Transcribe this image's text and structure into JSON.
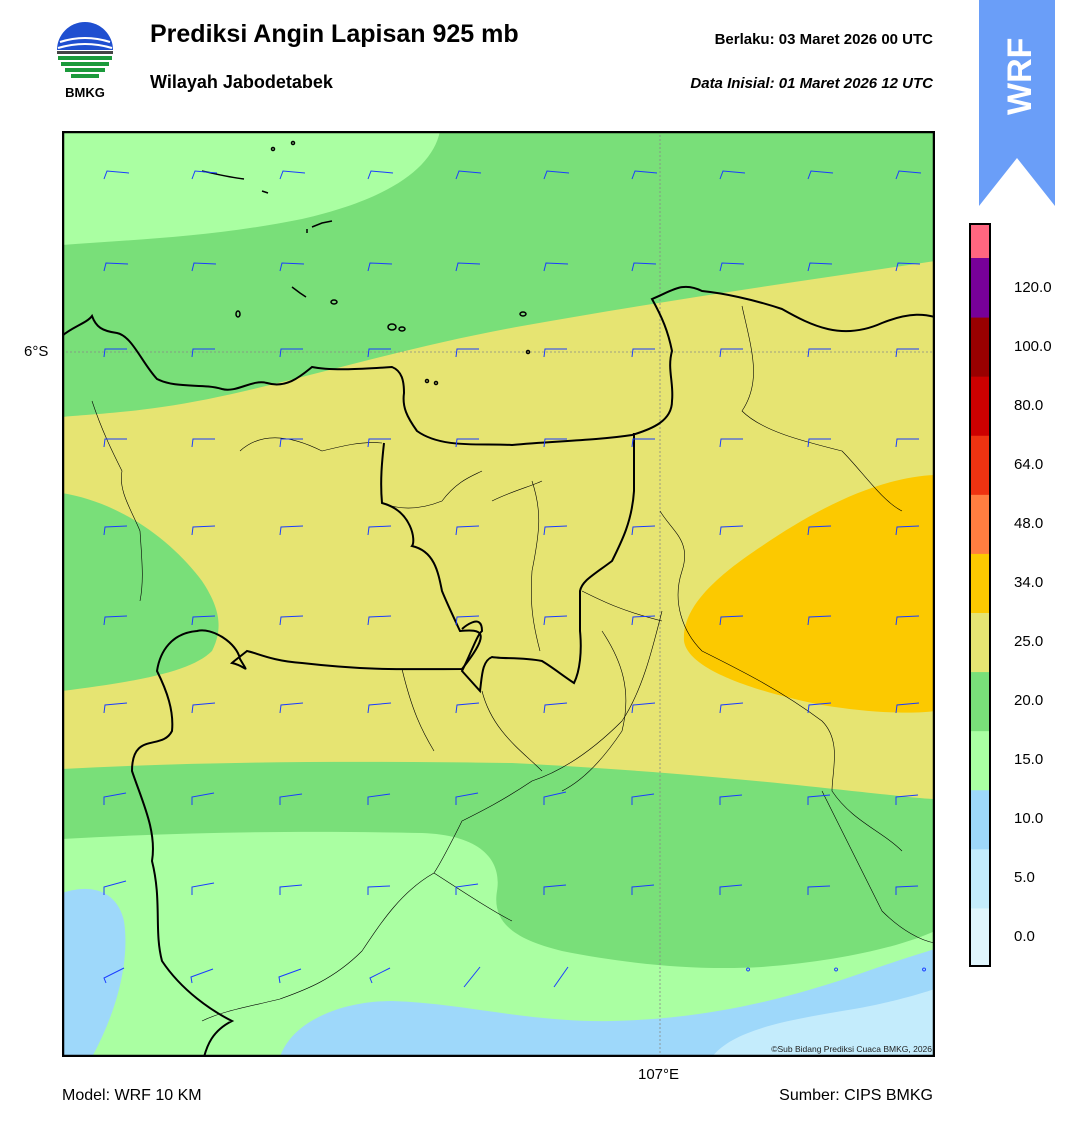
{
  "header": {
    "title": "Prediksi Angin Lapisan 925 mb",
    "subtitle": "Wilayah Jabodetabek",
    "valid_label": "Berlaku:  03 Maret 2026 00 UTC",
    "init_label": "Data Inisial:  01 Maret 2026 12 UTC"
  },
  "logo": {
    "text": "BMKG",
    "icon": "bmkg-logo"
  },
  "banner": {
    "text": "WRF",
    "color": "#6a9ef8"
  },
  "map": {
    "lat_label": "6°S",
    "lon_label": "107°E",
    "copyright": "©Sub Bidang Prediksi Cuaca BMKG, 2026",
    "barb_color": "#1a3cff",
    "coast_color": "#000000"
  },
  "colorbar": {
    "levels": [
      {
        "label": "0.0",
        "color": "#e0f6fd"
      },
      {
        "label": "5.0",
        "color": "#c4ecfc"
      },
      {
        "label": "10.0",
        "color": "#9ed8fa"
      },
      {
        "label": "15.0",
        "color": "#aaffa2"
      },
      {
        "label": "20.0",
        "color": "#79df79"
      },
      {
        "label": "25.0",
        "color": "#e6e472"
      },
      {
        "label": "34.0",
        "color": "#fcc900"
      },
      {
        "label": "48.0",
        "color": "#ff7e40"
      },
      {
        "label": "64.0",
        "color": "#ee3311"
      },
      {
        "label": "80.0",
        "color": "#cc0000"
      },
      {
        "label": "100.0",
        "color": "#990000"
      },
      {
        "label": "120.0",
        "color": "#770099"
      }
    ],
    "top_color": "#ff6680"
  },
  "footer": {
    "model": "Model: WRF 10 KM",
    "source": "Sumber: CIPS BMKG"
  }
}
